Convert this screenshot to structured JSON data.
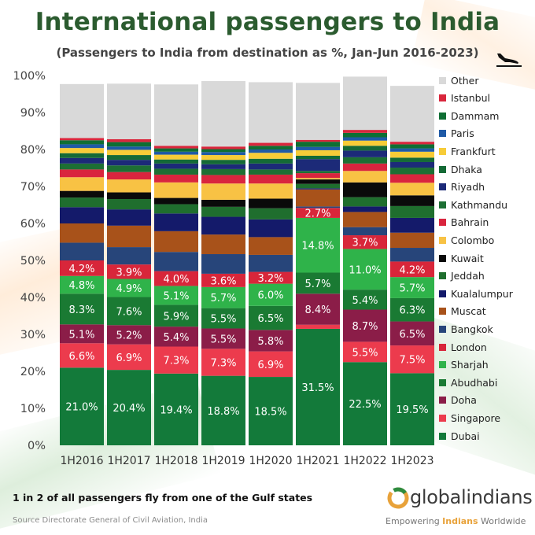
{
  "header": {
    "title": "International passengers to India",
    "subtitle": "(Passengers to India from destination as %, Jan-Jun 2016-2023)"
  },
  "icons": {
    "plane": "airplane-landing-icon",
    "logo": "globalindians-logo-icon"
  },
  "footer": {
    "note": "1 in 2 of all passengers fly from one of the Gulf states",
    "source": "Source Directorate General of Civil Aviation, India",
    "brand_name": "globalindians",
    "tagline_prefix": "Empowering ",
    "tagline_highlight": "Indians",
    "tagline_suffix": " Worldwide"
  },
  "colors": {
    "title": "#2b5b2f",
    "brand_highlight": "#e8a23a",
    "label_text": "#ffffff"
  },
  "chart_data": {
    "type": "bar",
    "stacked": true,
    "percent": true,
    "title": "International passengers to India",
    "categories": [
      "1H2016",
      "1H2017",
      "1H2018",
      "1H2019",
      "1H2020",
      "1H2021",
      "1H2022",
      "1H2023"
    ],
    "ylim": [
      0,
      100
    ],
    "yticks": [
      "0%",
      "10%",
      "20%",
      "30%",
      "40%",
      "50%",
      "60%",
      "70%",
      "80%",
      "90%",
      "100%"
    ],
    "xlabel": "",
    "ylabel": "",
    "legend_position": "right",
    "series": [
      {
        "name": "Dubai",
        "color": "#137a3a",
        "values": [
          21.0,
          20.4,
          19.4,
          18.8,
          18.5,
          31.5,
          22.5,
          19.5
        ],
        "labels": [
          "21.0%",
          "20.4%",
          "19.4%",
          "18.8%",
          "18.5%",
          "31.5%",
          "22.5%",
          "19.5%"
        ]
      },
      {
        "name": "Singapore",
        "color": "#ec3b4d",
        "values": [
          6.6,
          6.9,
          7.3,
          7.3,
          6.9,
          1.1,
          5.5,
          7.5
        ],
        "labels": [
          "6.6%",
          "6.9%",
          "7.3%",
          "7.3%",
          "6.9%",
          "",
          "5.5%",
          "7.5%"
        ]
      },
      {
        "name": "Doha",
        "color": "#8b1d48",
        "values": [
          5.1,
          5.2,
          5.4,
          5.5,
          5.8,
          8.4,
          8.7,
          6.5
        ],
        "labels": [
          "5.1%",
          "5.2%",
          "5.4%",
          "5.5%",
          "5.8%",
          "8.4%",
          "8.7%",
          "6.5%"
        ]
      },
      {
        "name": "Abudhabi",
        "color": "#1a7a33",
        "values": [
          8.3,
          7.6,
          5.9,
          5.5,
          6.5,
          5.7,
          5.4,
          6.3
        ],
        "labels": [
          "8.3%",
          "7.6%",
          "5.9%",
          "5.5%",
          "6.5%",
          "5.7%",
          "5.4%",
          "6.3%"
        ]
      },
      {
        "name": "Sharjah",
        "color": "#2fb34a",
        "values": [
          4.8,
          4.9,
          5.1,
          5.7,
          6.0,
          14.8,
          11.0,
          5.7
        ],
        "labels": [
          "4.8%",
          "4.9%",
          "5.1%",
          "5.7%",
          "6.0%",
          "14.8%",
          "11.0%",
          "5.7%"
        ]
      },
      {
        "name": "London",
        "color": "#d8263a",
        "values": [
          4.2,
          3.9,
          4.0,
          3.6,
          3.2,
          2.7,
          3.7,
          4.2
        ],
        "labels": [
          "4.2%",
          "3.9%",
          "4.0%",
          "3.6%",
          "3.2%",
          "2.7%",
          "3.7%",
          "4.2%"
        ]
      },
      {
        "name": "Bangkok",
        "color": "#27457a",
        "values": [
          4.8,
          4.7,
          5.2,
          5.3,
          4.6,
          0.4,
          2.2,
          3.7
        ],
        "labels": [
          "",
          "",
          "",
          "",
          "",
          "",
          "",
          ""
        ]
      },
      {
        "name": "Muscat",
        "color": "#a8521a",
        "values": [
          5.2,
          5.8,
          5.6,
          5.3,
          4.8,
          4.6,
          4.1,
          4.1
        ],
        "labels": [
          "",
          "",
          "",
          "",
          "",
          "",
          "",
          ""
        ]
      },
      {
        "name": "Kualalumpur",
        "color": "#141a6a",
        "values": [
          4.4,
          4.4,
          4.8,
          4.8,
          4.8,
          0.3,
          1.5,
          4.0
        ],
        "labels": [
          "",
          "",
          "",
          "",
          "",
          "",
          "",
          ""
        ]
      },
      {
        "name": "Jeddah",
        "color": "#1f6e2e",
        "values": [
          2.6,
          2.8,
          2.5,
          2.7,
          3.0,
          1.2,
          2.5,
          3.2
        ],
        "labels": [
          "",
          "",
          "",
          "",
          "",
          "",
          "",
          ""
        ]
      },
      {
        "name": "Kuwait",
        "color": "#0a0a0a",
        "values": [
          1.8,
          1.8,
          1.7,
          1.9,
          2.6,
          1.2,
          4.0,
          2.9
        ],
        "labels": [
          "",
          "",
          "",
          "",
          "",
          "",
          "",
          ""
        ]
      },
      {
        "name": "Colombo",
        "color": "#f8c244",
        "values": [
          3.7,
          3.5,
          4.2,
          4.4,
          4.1,
          0.4,
          3.1,
          3.4
        ],
        "labels": [
          "",
          "",
          "",
          "",
          "",
          "",
          "",
          ""
        ]
      },
      {
        "name": "Bahrain",
        "color": "#d9253e",
        "values": [
          2.1,
          2.0,
          2.1,
          2.3,
          2.4,
          1.3,
          2.0,
          2.3
        ],
        "labels": [
          "",
          "",
          "",
          "",
          "",
          "",
          "",
          ""
        ]
      },
      {
        "name": "Kathmandu",
        "color": "#1d6f34",
        "values": [
          1.6,
          1.8,
          1.6,
          1.6,
          1.4,
          0.6,
          1.7,
          1.8
        ],
        "labels": [
          "",
          "",
          "",
          "",
          "",
          "",
          "",
          ""
        ]
      },
      {
        "name": "Riyadh",
        "color": "#1c2a78",
        "values": [
          1.5,
          1.5,
          1.4,
          1.3,
          1.6,
          3.2,
          1.8,
          1.5
        ],
        "labels": [
          "",
          "",
          "",
          "",
          "",
          "",
          "",
          ""
        ]
      },
      {
        "name": "Dhaka",
        "color": "#146a36",
        "values": [
          1.3,
          1.3,
          1.1,
          1.2,
          1.3,
          0.9,
          1.3,
          1.2
        ],
        "labels": [
          "",
          "",
          "",
          "",
          "",
          "",
          "",
          ""
        ]
      },
      {
        "name": "Frankfurt",
        "color": "#f7cc38",
        "values": [
          1.4,
          1.4,
          1.3,
          1.3,
          1.6,
          1.5,
          1.4,
          1.6
        ],
        "labels": [
          "",
          "",
          "",
          "",
          "",
          "",
          "",
          ""
        ]
      },
      {
        "name": "Paris",
        "color": "#1f5aa6",
        "values": [
          1.0,
          0.9,
          0.8,
          0.8,
          0.9,
          0.9,
          0.9,
          0.9
        ],
        "labels": [
          "",
          "",
          "",
          "",
          "",
          "",
          "",
          ""
        ]
      },
      {
        "name": "Dammam",
        "color": "#0f6e33",
        "values": [
          1.1,
          1.2,
          0.9,
          0.8,
          1.0,
          1.4,
          1.2,
          1.1
        ],
        "labels": [
          "",
          "",
          "",
          "",
          "",
          "",
          "",
          ""
        ]
      },
      {
        "name": "Istanbul",
        "color": "#d9263c",
        "values": [
          0.6,
          0.8,
          0.7,
          0.7,
          0.8,
          0.5,
          0.8,
          0.7
        ],
        "labels": [
          "",
          "",
          "",
          "",
          "",
          "",
          "",
          ""
        ]
      },
      {
        "name": "Other",
        "color": "#d9d9d9",
        "values": [
          14.6,
          15.0,
          16.6,
          17.7,
          16.4,
          15.4,
          14.4,
          15.1
        ],
        "labels": [
          "",
          "",
          "",
          "",
          "",
          "",
          "",
          ""
        ]
      }
    ],
    "legend_order": [
      "Other",
      "Istanbul",
      "Dammam",
      "Paris",
      "Frankfurt",
      "Dhaka",
      "Riyadh",
      "Kathmandu",
      "Bahrain",
      "Colombo",
      "Kuwait",
      "Jeddah",
      "Kualalumpur",
      "Muscat",
      "Bangkok",
      "London",
      "Sharjah",
      "Abudhabi",
      "Doha",
      "Singapore",
      "Dubai"
    ]
  }
}
